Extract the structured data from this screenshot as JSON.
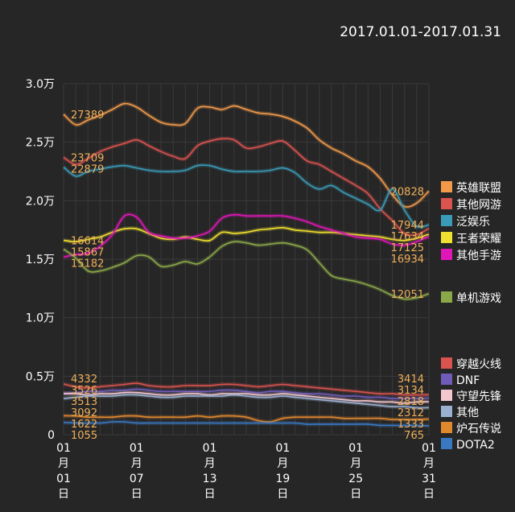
{
  "header": {
    "date_range": "2017.01.01-2017.01.31"
  },
  "chart_data": {
    "type": "line",
    "title": "",
    "xlabel": "",
    "ylabel": "",
    "ylim": [
      0,
      30000
    ],
    "y_ticks": [
      {
        "value": 0,
        "label": "0"
      },
      {
        "value": 5000,
        "label": "0.5万"
      },
      {
        "value": 10000,
        "label": "1.0万"
      },
      {
        "value": 15000,
        "label": "1.5万"
      },
      {
        "value": 20000,
        "label": "2.0万"
      },
      {
        "value": 25000,
        "label": "2.5万"
      },
      {
        "value": 30000,
        "label": "3.0万"
      }
    ],
    "x": [
      "01月01日",
      "01月02日",
      "01月03日",
      "01月04日",
      "01月05日",
      "01月06日",
      "01月07日",
      "01月08日",
      "01月09日",
      "01月10日",
      "01月11日",
      "01月12日",
      "01月13日",
      "01月14日",
      "01月15日",
      "01月16日",
      "01月17日",
      "01月18日",
      "01月19日",
      "01月20日",
      "01月21日",
      "01月22日",
      "01月23日",
      "01月24日",
      "01月25日",
      "01月26日",
      "01月27日",
      "01月28日",
      "01月29日",
      "01月30日",
      "01月31日"
    ],
    "x_tick_labels": [
      {
        "day": 1,
        "lines": [
          "01",
          "月",
          "01",
          "日"
        ]
      },
      {
        "day": 7,
        "lines": [
          "01",
          "月",
          "07",
          "日"
        ]
      },
      {
        "day": 13,
        "lines": [
          "01",
          "月",
          "13",
          "日"
        ]
      },
      {
        "day": 19,
        "lines": [
          "01",
          "月",
          "19",
          "日"
        ]
      },
      {
        "day": 25,
        "lines": [
          "01",
          "月",
          "25",
          "日"
        ]
      },
      {
        "day": 31,
        "lines": [
          "01",
          "月",
          "31",
          "日"
        ]
      }
    ],
    "grid": true,
    "legend_position": "right",
    "label_color": "#f0b05a",
    "series": [
      {
        "name": "英雄联盟",
        "color": "#f39a4a",
        "start_label": "27389",
        "end_label": "20828",
        "values": [
          27389,
          26500,
          26900,
          27300,
          27800,
          28300,
          28000,
          27300,
          26700,
          26500,
          26600,
          27900,
          28000,
          27800,
          28100,
          27800,
          27500,
          27400,
          27200,
          26800,
          26200,
          25200,
          24500,
          24000,
          23400,
          22900,
          21900,
          20500,
          19500,
          19800,
          20828
        ]
      },
      {
        "name": "其他网游",
        "color": "#d9534f",
        "start_label": "23709",
        "end_label": "17634",
        "values": [
          23709,
          23100,
          23600,
          24200,
          24600,
          24900,
          25200,
          24700,
          24200,
          23800,
          23600,
          24700,
          25100,
          25300,
          25200,
          24500,
          24600,
          24900,
          25100,
          24300,
          23400,
          23100,
          22500,
          21900,
          21300,
          20600,
          19300,
          18300,
          17200,
          17100,
          17634
        ]
      },
      {
        "name": "泛娱乐",
        "color": "#3a9bb8",
        "start_label": "22879",
        "end_label": "17944",
        "values": [
          22879,
          22100,
          22500,
          22700,
          22900,
          23000,
          22800,
          22600,
          22500,
          22500,
          22600,
          23000,
          23000,
          22700,
          22500,
          22500,
          22500,
          22600,
          22800,
          22400,
          21500,
          21000,
          21300,
          20700,
          20200,
          19700,
          19200,
          21000,
          19200,
          17800,
          17944
        ]
      },
      {
        "name": "王者荣耀",
        "color": "#f0e030",
        "start_label": "16614",
        "end_label": "17125",
        "values": [
          16614,
          16500,
          16700,
          16900,
          17300,
          17600,
          17600,
          17200,
          16800,
          16700,
          16900,
          16700,
          16600,
          17300,
          17200,
          17300,
          17500,
          17600,
          17700,
          17500,
          17400,
          17300,
          17300,
          17200,
          17100,
          17000,
          16900,
          16700,
          16600,
          16800,
          17125
        ]
      },
      {
        "name": "其他手游",
        "color": "#e017b7",
        "start_label": "15182",
        "end_label": "16934",
        "values": [
          15182,
          15400,
          15500,
          16100,
          17100,
          18700,
          18600,
          17300,
          17000,
          16800,
          16800,
          17000,
          17400,
          18500,
          18800,
          18700,
          18700,
          18700,
          18700,
          18500,
          18200,
          17800,
          17500,
          17200,
          16900,
          16800,
          16700,
          16300,
          16200,
          16500,
          16934
        ]
      },
      {
        "name": "单机游戏",
        "color": "#8aa848",
        "start_label": "15867",
        "end_label": "12051",
        "values": [
          15867,
          15100,
          14000,
          14000,
          14300,
          14700,
          15300,
          15200,
          14400,
          14500,
          14800,
          14600,
          15200,
          16100,
          16500,
          16400,
          16200,
          16300,
          16400,
          16200,
          15800,
          14700,
          13600,
          13300,
          13100,
          12800,
          12400,
          11900,
          11600,
          11700,
          12051
        ]
      },
      {
        "name": "穿越火线",
        "color": "#d9534f",
        "start_label": "4332",
        "end_label": "3414",
        "values": [
          4332,
          4100,
          4000,
          4100,
          4200,
          4300,
          4400,
          4200,
          4100,
          4100,
          4200,
          4200,
          4200,
          4300,
          4300,
          4200,
          4100,
          4200,
          4300,
          4200,
          4100,
          4000,
          3900,
          3800,
          3700,
          3600,
          3500,
          3500,
          3400,
          3400,
          3414
        ]
      },
      {
        "name": "DNF",
        "color": "#6f5cb8",
        "start_label": "3526",
        "end_label": "3134",
        "values": [
          3526,
          3600,
          3700,
          3700,
          3800,
          3800,
          3900,
          3800,
          3700,
          3700,
          3700,
          3700,
          3700,
          3800,
          3800,
          3700,
          3600,
          3700,
          3700,
          3600,
          3500,
          3500,
          3400,
          3300,
          3300,
          3200,
          3200,
          3100,
          3100,
          3100,
          3134
        ]
      },
      {
        "name": "守望先锋",
        "color": "#f4c6cf",
        "start_label": "3513",
        "end_label": "2818",
        "values": [
          3513,
          3500,
          3400,
          3500,
          3500,
          3600,
          3600,
          3500,
          3400,
          3400,
          3500,
          3500,
          3400,
          3500,
          3500,
          3500,
          3400,
          3400,
          3500,
          3400,
          3300,
          3200,
          3100,
          3000,
          2900,
          2900,
          2800,
          2800,
          2700,
          2800,
          2818
        ]
      },
      {
        "name": "其他",
        "color": "#9bb0d0",
        "start_label": "3092",
        "end_label": "2312",
        "values": [
          3092,
          3200,
          3300,
          3300,
          3300,
          3400,
          3400,
          3300,
          3200,
          3200,
          3300,
          3300,
          3300,
          3300,
          3400,
          3300,
          3200,
          3200,
          3300,
          3200,
          3100,
          3000,
          2900,
          2800,
          2700,
          2600,
          2500,
          2400,
          2400,
          2300,
          2312
        ]
      },
      {
        "name": "炉石传说",
        "color": "#e0882e",
        "start_label": "1622",
        "end_label": "1333",
        "values": [
          1622,
          1600,
          1500,
          1500,
          1500,
          1600,
          1600,
          1500,
          1500,
          1500,
          1500,
          1600,
          1500,
          1600,
          1600,
          1500,
          1200,
          1100,
          1400,
          1500,
          1500,
          1500,
          1500,
          1400,
          1400,
          1400,
          1400,
          1300,
          1300,
          1300,
          1333
        ]
      },
      {
        "name": "DOTA2",
        "color": "#3a78c2",
        "start_label": "1055",
        "end_label": "765",
        "values": [
          1055,
          1000,
          1000,
          1000,
          1100,
          1100,
          1000,
          1000,
          1000,
          1000,
          1000,
          1000,
          1000,
          1000,
          1000,
          1000,
          1000,
          1000,
          1000,
          1000,
          900,
          900,
          900,
          900,
          900,
          900,
          800,
          800,
          800,
          800,
          765
        ]
      }
    ],
    "layout_order": [
      {
        "label": "27389",
        "side": "start"
      },
      {
        "label": "23709",
        "side": "start"
      },
      {
        "label": "22879",
        "side": "start"
      },
      {
        "label": "16614",
        "side": "start"
      },
      {
        "label": "15867",
        "side": "start"
      },
      {
        "label": "15182",
        "side": "start"
      },
      {
        "label": "4332",
        "side": "start"
      }
    ]
  }
}
